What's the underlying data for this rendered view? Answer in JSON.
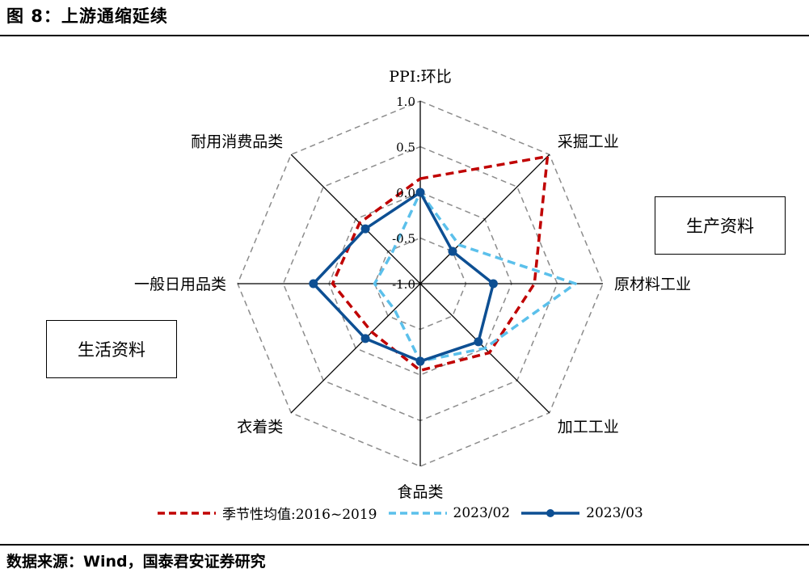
{
  "header": {
    "title": "图 8：上游通缩延续"
  },
  "footer": {
    "source": "数据来源：Wind，国泰君安证券研究"
  },
  "annotations": {
    "production_box": "生产资料",
    "living_box": "生活资料"
  },
  "chart_data": {
    "type": "radar",
    "title": "",
    "axes": [
      "PPI:环比",
      "采掘工业",
      "原材料工业",
      "加工工业",
      "食品类",
      "衣着类",
      "一般日用品类",
      "耐用消费品类"
    ],
    "rlim": [
      -1.0,
      1.0
    ],
    "ticks": [
      -1.0,
      -0.5,
      0.0,
      0.5,
      1.0
    ],
    "tick_labels": [
      "-1.0",
      "-0.5",
      "0.0",
      "0.5",
      "1.0"
    ],
    "grid": true,
    "legend_position": "bottom",
    "series": [
      {
        "name": "季节性均值:2016~2019",
        "color": "#c00000",
        "style": "dashed",
        "marker": false,
        "values": [
          0.15,
          0.97,
          0.25,
          0.07,
          -0.05,
          -0.25,
          -0.04,
          -0.06
        ]
      },
      {
        "name": "2023/02",
        "color": "#5bc0eb",
        "style": "dashed",
        "marker": false,
        "values": [
          0.0,
          -0.4,
          0.7,
          0.0,
          -0.15,
          -0.6,
          -0.5,
          -0.55
        ]
      },
      {
        "name": "2023/03",
        "color": "#0d4f93",
        "style": "solid",
        "marker": true,
        "values": [
          0.0,
          -0.5,
          -0.2,
          -0.1,
          -0.15,
          -0.15,
          0.17,
          -0.15
        ]
      }
    ]
  }
}
